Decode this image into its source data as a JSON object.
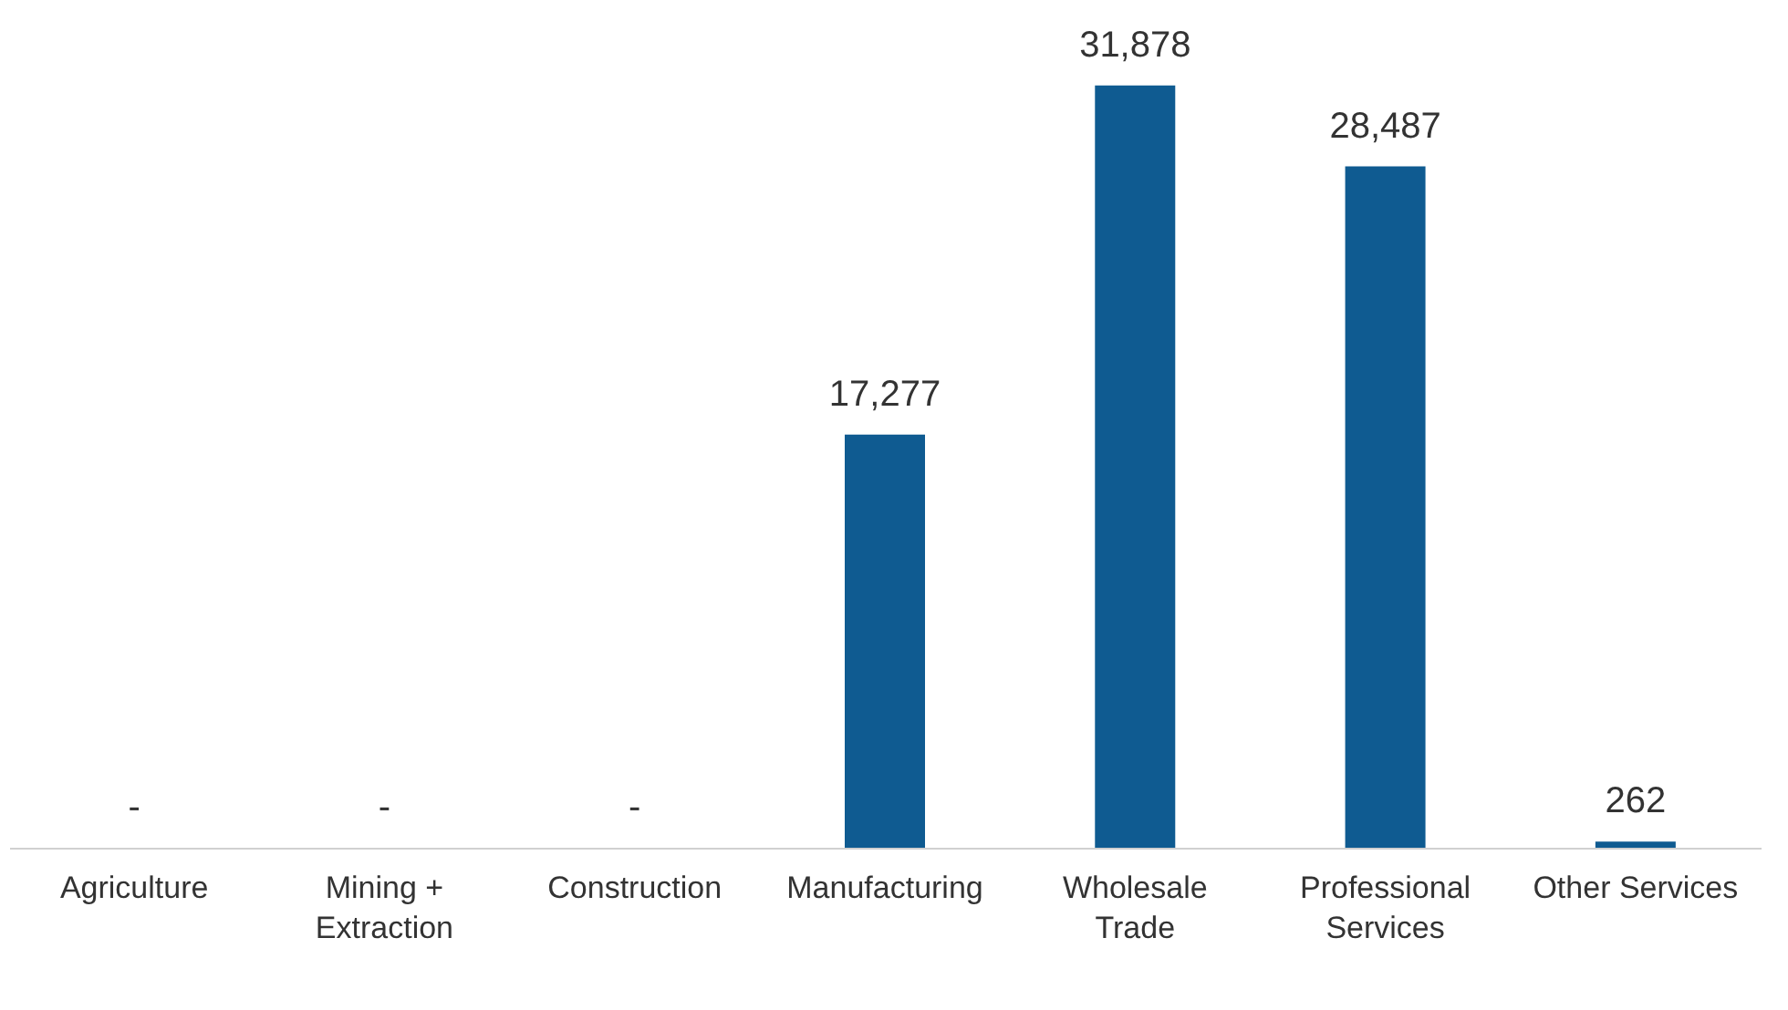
{
  "chart_data": {
    "type": "bar",
    "categories": [
      "Agriculture",
      "Mining + Extraction",
      "Construction",
      "Manufacturing",
      "Wholesale Trade",
      "Professional Services",
      "Other Services"
    ],
    "values": [
      0,
      0,
      0,
      17277,
      31878,
      28487,
      262
    ],
    "value_labels": [
      "-",
      "-",
      "-",
      "17,277",
      "31,878",
      "28,487",
      "262"
    ],
    "color": "#0f5b91",
    "tick_labels": "x",
    "grid": false
  }
}
